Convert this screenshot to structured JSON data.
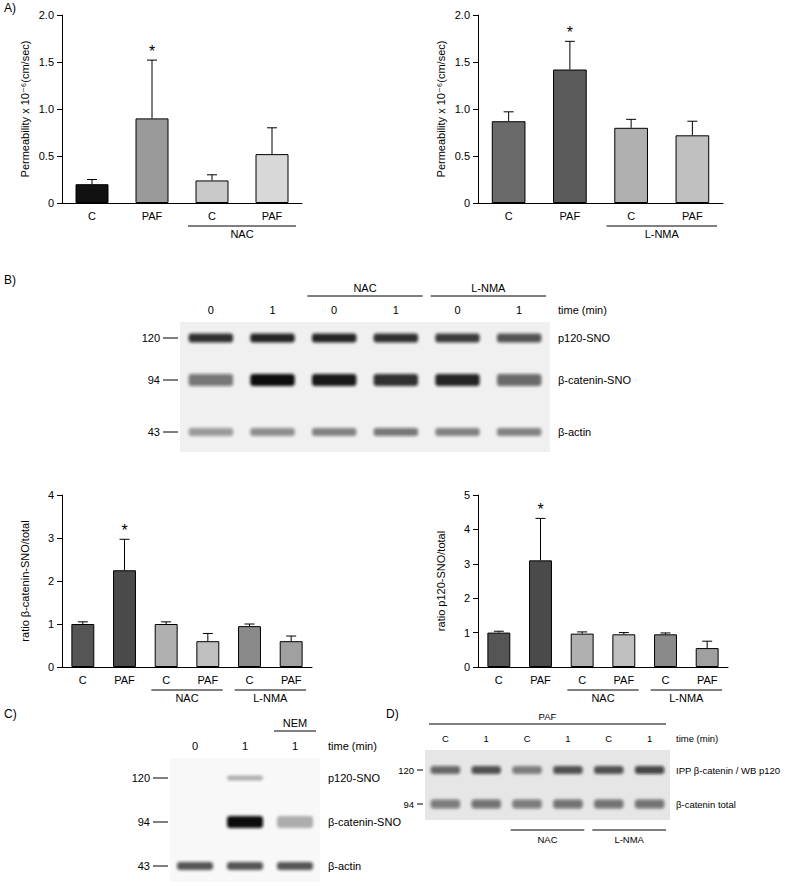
{
  "panel_labels": [
    "A)",
    "B)",
    "C)",
    "D)"
  ],
  "chart_data": [
    {
      "type": "bar",
      "y_label": "Permeability x 10⁻⁶(cm/sec)",
      "categories": [
        "C",
        "PAF",
        "C",
        "PAF"
      ],
      "values": [
        0.2,
        0.9,
        0.24,
        0.52
      ],
      "errors": [
        0.05,
        0.62,
        0.06,
        0.28
      ],
      "significance": [
        null,
        "*",
        null,
        null
      ],
      "x_groups": [
        {
          "label": "NAC",
          "members": [
            false,
            false,
            true,
            true
          ]
        }
      ],
      "colors": [
        "#111111",
        "#9a9a9a",
        "#c8c8c8",
        "#d8d8d8"
      ],
      "ylim": [
        0,
        2
      ],
      "yticks": [
        0,
        0.5,
        {
          "value": 1,
          "label": "1.0"
        },
        1.5,
        {
          "value": 2,
          "label": "2.0"
        }
      ],
      "grid": false
    },
    {
      "type": "bar",
      "y_label": "Permeability x 10⁻⁶(cm/sec)",
      "categories": [
        "C",
        "PAF",
        "C",
        "PAF"
      ],
      "values": [
        0.87,
        1.42,
        0.8,
        0.72
      ],
      "errors": [
        0.1,
        0.3,
        0.09,
        0.15
      ],
      "significance": [
        null,
        "*",
        null,
        null
      ],
      "x_groups": [
        {
          "label": "L-NMA",
          "members": [
            false,
            false,
            true,
            true
          ]
        }
      ],
      "colors": [
        "#6a6a6a",
        "#5a5a5a",
        "#b0b0b0",
        "#c0c0c0"
      ],
      "ylim": [
        0,
        2
      ],
      "yticks": [
        0,
        0.5,
        {
          "value": 1,
          "label": "1.0"
        },
        1.5,
        {
          "value": 2,
          "label": "2.0"
        }
      ],
      "grid": false
    },
    {
      "type": "bar",
      "y_label": "ratio β-catenin-SNO/total",
      "categories": [
        "C",
        "PAF",
        "C",
        "PAF",
        "C",
        "PAF"
      ],
      "values": [
        1.0,
        2.25,
        1.0,
        0.6,
        0.95,
        0.6
      ],
      "errors": [
        0.05,
        0.72,
        0.05,
        0.18,
        0.05,
        0.12
      ],
      "significance": [
        null,
        "*",
        null,
        null,
        null,
        null
      ],
      "x_groups": [
        {
          "label": "NAC",
          "members": [
            false,
            false,
            true,
            true,
            false,
            false
          ]
        },
        {
          "label": "L-NMA",
          "members": [
            false,
            false,
            false,
            false,
            true,
            true
          ]
        }
      ],
      "colors": [
        "#555555",
        "#4a4a4a",
        "#b0b0b0",
        "#c0c0c0",
        "#8a8a8a",
        "#a0a0a0"
      ],
      "ylim": [
        0,
        4
      ],
      "yticks": [
        0,
        1,
        2,
        3,
        4
      ],
      "grid": false
    },
    {
      "type": "bar",
      "y_label": "ratio p120-SNO/total",
      "categories": [
        "C",
        "PAF",
        "C",
        "PAF",
        "C",
        "PAF"
      ],
      "values": [
        1.0,
        3.1,
        0.97,
        0.95,
        0.95,
        0.55
      ],
      "errors": [
        0.04,
        1.22,
        0.05,
        0.05,
        0.04,
        0.2
      ],
      "significance": [
        null,
        "*",
        null,
        null,
        null,
        null
      ],
      "x_groups": [
        {
          "label": "NAC",
          "members": [
            false,
            false,
            true,
            true,
            false,
            false
          ]
        },
        {
          "label": "L-NMA",
          "members": [
            false,
            false,
            false,
            false,
            true,
            true
          ]
        }
      ],
      "colors": [
        "#555555",
        "#4a4a4a",
        "#b0b0b0",
        "#c0c0c0",
        "#8a8a8a",
        "#a0a0a0"
      ],
      "ylim": [
        0,
        5
      ],
      "yticks": [
        0,
        1,
        2,
        3,
        4,
        5
      ],
      "grid": false
    }
  ],
  "blots": [
    {
      "panel": "B)",
      "lanes": [
        "0",
        "1",
        "0",
        "1",
        "0",
        "1"
      ],
      "lane_label": "time (min)",
      "groups_above": [
        {
          "label": "NAC",
          "members": [
            false,
            false,
            true,
            true,
            false,
            false
          ]
        },
        {
          "label": "L-NMA",
          "members": [
            false,
            false,
            false,
            false,
            true,
            true
          ]
        }
      ],
      "rows": [
        {
          "label": "p120-SNO",
          "marker": 120
        },
        {
          "label": "β-catenin-SNO",
          "marker": 94
        },
        {
          "label": "β-actin",
          "marker": 43
        }
      ]
    },
    {
      "panel": "C)",
      "lanes": [
        "0",
        "1",
        "1"
      ],
      "lane_label": "time (min)",
      "groups_above": [
        {
          "label": "NEM",
          "members": [
            false,
            false,
            true
          ]
        }
      ],
      "rows": [
        {
          "label": "p120-SNO",
          "marker": 120
        },
        {
          "label": "β-catenin-SNO",
          "marker": 94
        },
        {
          "label": "β-actin",
          "marker": 43
        }
      ]
    },
    {
      "panel": "D)",
      "lanes": [
        "C",
        "1",
        "C",
        "1",
        "C",
        "1"
      ],
      "lane_label": "time (min)",
      "groups_above": [
        {
          "label": "PAF",
          "members": [
            true,
            true,
            true,
            true,
            true,
            true
          ]
        }
      ],
      "groups_below": [
        {
          "label": "NAC",
          "members": [
            false,
            false,
            true,
            true,
            false,
            false
          ]
        },
        {
          "label": "L-NMA",
          "members": [
            false,
            false,
            false,
            false,
            true,
            true
          ]
        }
      ],
      "rows": [
        {
          "label": "IPP β-catenin / WB p120",
          "marker": 120
        },
        {
          "label": "β-catenin total",
          "marker": 94
        }
      ]
    }
  ]
}
